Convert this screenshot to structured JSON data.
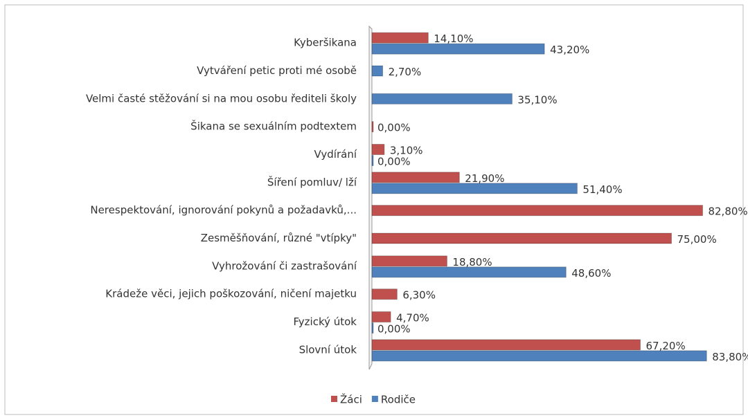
{
  "chart_data": {
    "type": "hbar",
    "categories": [
      "Kyberšikana",
      "Vytváření petic proti mé osobě",
      "Velmi časté stěžování si na mou osobu řediteli školy",
      "Šikana se sexuálním podtextem",
      "Vydírání",
      "Šíření pomluv/ lží",
      "Nerespektování, ignorování pokynů a požadavků,...",
      "Zesměšňování, různé \"vtípky\"",
      "Vyhrožování či zastrašování",
      "Krádeže věci, jejich poškozování, ničení majetku",
      "Fyzický útok",
      "Slovní útok"
    ],
    "series": [
      {
        "name": "Žáci",
        "color": "#c0504d",
        "values": [
          14.1,
          null,
          null,
          0,
          3.1,
          21.9,
          82.8,
          75.0,
          18.8,
          6.3,
          4.7,
          67.2
        ],
        "value_labels": [
          "14,10%",
          null,
          null,
          "0,00%",
          "3,10%",
          "21,90%",
          "82,80%",
          "75,00%",
          "18,80%",
          "6,30%",
          "4,70%",
          "67,20%"
        ]
      },
      {
        "name": "Rodiče",
        "color": "#4f81bd",
        "values": [
          43.2,
          2.7,
          35.1,
          null,
          0,
          51.4,
          null,
          null,
          48.6,
          null,
          0,
          83.8
        ],
        "value_labels": [
          "43,20%",
          "2,70%",
          "35,10%",
          null,
          "0,00%",
          "51,40%",
          null,
          null,
          "48,60%",
          null,
          "0,00%",
          "83,80%"
        ]
      }
    ],
    "xlim": [
      0,
      90
    ],
    "legend": "bottom"
  }
}
